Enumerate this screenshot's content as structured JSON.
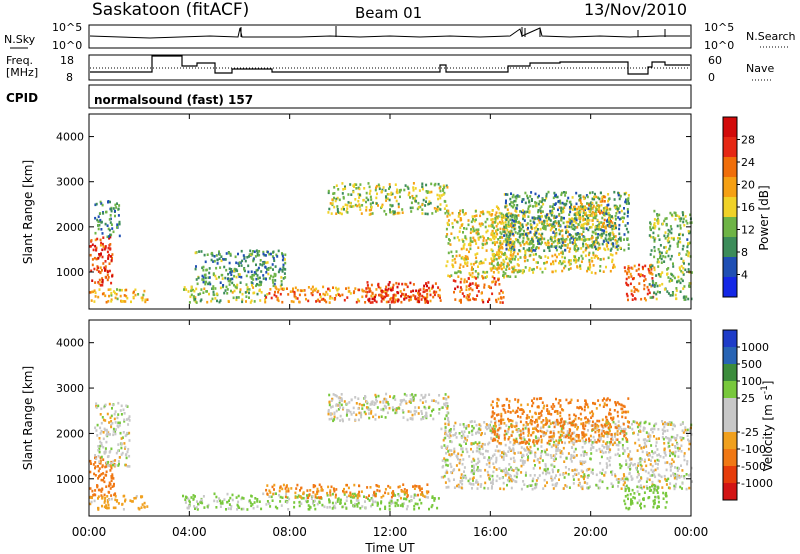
{
  "header": {
    "station": "Saskatoon (fitACF)",
    "beam": "Beam 01",
    "date": "13/Nov/2010"
  },
  "panels": {
    "nsky": {
      "label": "N.Sky",
      "left_ticks": [
        "10^5",
        "10^0"
      ],
      "right_ticks": [
        "10^5",
        "10^0"
      ],
      "right_label": "N.Search"
    },
    "freq": {
      "label_line1": "Freq.",
      "label_line2": "[MHz]",
      "left_ticks": [
        "18",
        "8"
      ],
      "right_ticks": [
        "60",
        "0"
      ],
      "right_label": "Nave"
    },
    "cpid": {
      "label": "CPID",
      "text": "normalsound (fast) 157"
    }
  },
  "colors": {
    "power_scale": [
      "#1428e6",
      "#1f4fb4",
      "#3c8c5a",
      "#6eb446",
      "#f0d228",
      "#f5a014",
      "#f06e0a",
      "#e62814",
      "#d20a0a"
    ],
    "velocity_scale": [
      "#1e3cc8",
      "#2864b4",
      "#3c8c3c",
      "#78c83c",
      "#c8c8c8",
      "#c8c8c8",
      "#f0a01e",
      "#f07814",
      "#e63c0a",
      "#d21414"
    ],
    "ground_scatter": "#bebebe"
  },
  "chart_data": [
    {
      "type": "heatmap",
      "parameter": "Power",
      "ylabel": "Slant Range [km]",
      "ylim": [
        180,
        4500
      ],
      "yticks": [
        "1000",
        "2000",
        "3000",
        "4000"
      ],
      "xlim_hours": [
        0,
        24
      ],
      "colorbar_label": "Power [dB]",
      "colorbar_range": [
        0,
        32
      ],
      "colorbar_ticks": [
        "4",
        "8",
        "12",
        "16",
        "20",
        "24",
        "28"
      ],
      "regions": [
        {
          "t0": 0.0,
          "t1": 0.9,
          "r0": 700,
          "r1": 1900,
          "value": 26
        },
        {
          "t0": 0.2,
          "t1": 1.2,
          "r0": 1800,
          "r1": 2600,
          "value": 9
        },
        {
          "t0": 0.0,
          "t1": 2.3,
          "r0": 350,
          "r1": 650,
          "value": 18
        },
        {
          "t0": 3.7,
          "t1": 7.0,
          "r0": 350,
          "r1": 700,
          "value": 14
        },
        {
          "t0": 4.2,
          "t1": 7.8,
          "r0": 700,
          "r1": 1500,
          "value": 10
        },
        {
          "t0": 7.0,
          "t1": 14.0,
          "r0": 350,
          "r1": 700,
          "value": 22
        },
        {
          "t0": 11.0,
          "t1": 13.8,
          "r0": 350,
          "r1": 800,
          "value": 28
        },
        {
          "t0": 9.5,
          "t1": 14.3,
          "r0": 2300,
          "r1": 3000,
          "value": 14
        },
        {
          "t0": 14.2,
          "t1": 17.0,
          "r0": 900,
          "r1": 2400,
          "value": 16
        },
        {
          "t0": 14.5,
          "t1": 16.5,
          "r0": 350,
          "r1": 900,
          "value": 24
        },
        {
          "t0": 16.0,
          "t1": 21.0,
          "r0": 1000,
          "r1": 2500,
          "value": 16
        },
        {
          "t0": 16.5,
          "t1": 21.5,
          "r0": 1500,
          "r1": 2800,
          "value": 10
        },
        {
          "t0": 19.5,
          "t1": 20.8,
          "r0": 2000,
          "r1": 2700,
          "value": 18
        },
        {
          "t0": 21.3,
          "t1": 22.5,
          "r0": 400,
          "r1": 1200,
          "value": 24
        },
        {
          "t0": 22.3,
          "t1": 24.0,
          "r0": 400,
          "r1": 2400,
          "value": 12
        }
      ]
    },
    {
      "type": "heatmap",
      "parameter": "Velocity",
      "ylabel": "Slant Range [km]",
      "ylim": [
        180,
        4500
      ],
      "yticks": [
        "1000",
        "2000",
        "3000",
        "4000"
      ],
      "xlim_hours": [
        0,
        24
      ],
      "xticks": [
        "00:00",
        "04:00",
        "08:00",
        "12:00",
        "16:00",
        "20:00",
        "00:00"
      ],
      "xlabel": "Time UT",
      "colorbar_label": "Velocity [m s^-1]",
      "colorbar_ticks": [
        "1000",
        "500",
        "100",
        "25",
        "-25",
        "-100",
        "-500",
        "-1000"
      ],
      "regions": [
        {
          "t0": 0.0,
          "t1": 1.0,
          "r0": 600,
          "r1": 1500,
          "value": -300
        },
        {
          "t0": 0.2,
          "t1": 1.6,
          "r0": 1300,
          "r1": 2700,
          "value": 0
        },
        {
          "t0": 0.0,
          "t1": 2.3,
          "r0": 350,
          "r1": 650,
          "value": -60
        },
        {
          "t0": 3.7,
          "t1": 14.0,
          "r0": 350,
          "r1": 700,
          "value": 40
        },
        {
          "t0": 7.0,
          "t1": 13.5,
          "r0": 600,
          "r1": 900,
          "value": -100
        },
        {
          "t0": 9.5,
          "t1": 14.3,
          "r0": 2300,
          "r1": 2900,
          "value": 0
        },
        {
          "t0": 14.0,
          "t1": 24.0,
          "r0": 800,
          "r1": 2300,
          "value": 0
        },
        {
          "t0": 16.0,
          "t1": 21.5,
          "r0": 1800,
          "r1": 2800,
          "value": -120
        },
        {
          "t0": 21.3,
          "t1": 23.0,
          "r0": 350,
          "r1": 900,
          "value": 60
        }
      ]
    }
  ]
}
